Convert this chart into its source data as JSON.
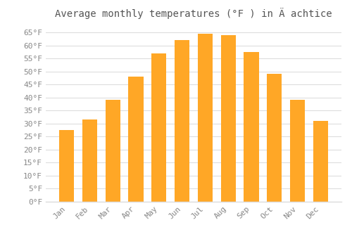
{
  "title": "Average monthly temperatures (°F ) in Ä achtice",
  "months": [
    "Jan",
    "Feb",
    "Mar",
    "Apr",
    "May",
    "Jun",
    "Jul",
    "Aug",
    "Sep",
    "Oct",
    "Nov",
    "Dec"
  ],
  "values": [
    27.5,
    31.5,
    39.0,
    48.0,
    57.0,
    62.0,
    64.5,
    64.0,
    57.5,
    49.0,
    39.0,
    31.0
  ],
  "bar_color": "#FFA726",
  "background_color": "#ffffff",
  "grid_color": "#dddddd",
  "ylim": [
    0,
    68
  ],
  "yticks": [
    0,
    5,
    10,
    15,
    20,
    25,
    30,
    35,
    40,
    45,
    50,
    55,
    60,
    65
  ],
  "title_fontsize": 10,
  "tick_fontsize": 8,
  "tick_color": "#888888",
  "title_color": "#555555",
  "font_family": "monospace",
  "bar_width": 0.65
}
